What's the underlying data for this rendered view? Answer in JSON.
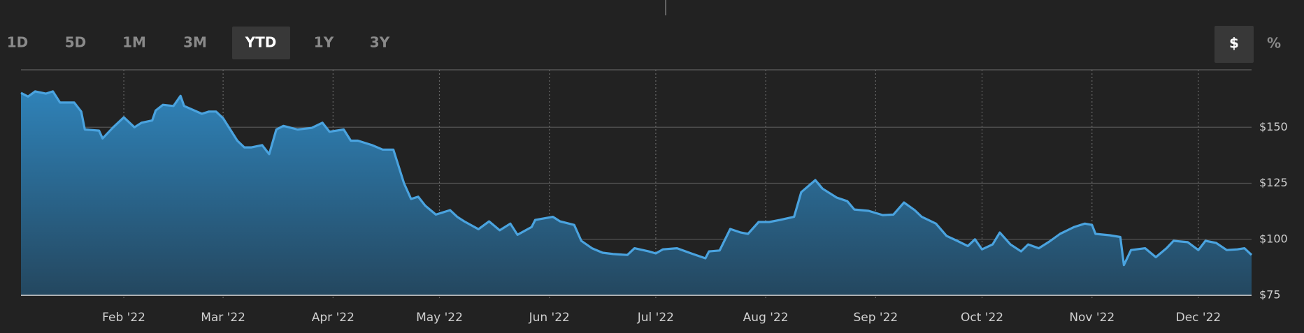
{
  "range_buttons": [
    "1D",
    "5D",
    "1M",
    "3M",
    "YTD",
    "1Y",
    "3Y"
  ],
  "selected_range": "YTD",
  "unit_buttons": [
    "$",
    "%"
  ],
  "selected_unit": "$",
  "chart_data": {
    "type": "area",
    "color": "#4aa3df",
    "grid": true,
    "x": [
      3,
      5,
      7,
      10,
      12,
      14,
      18,
      20,
      21,
      25,
      26,
      29,
      32,
      35,
      37,
      40,
      41,
      43,
      46,
      48,
      49,
      54,
      56,
      58,
      60,
      64,
      66,
      68,
      71,
      73,
      75,
      77,
      81,
      85,
      88,
      90,
      94,
      96,
      98,
      102,
      105,
      108,
      111,
      113,
      115,
      117,
      120,
      124,
      126,
      128,
      132,
      135,
      138,
      141,
      143,
      147,
      148,
      153,
      155,
      159,
      161,
      164,
      167,
      170,
      174,
      176,
      180,
      182,
      184,
      188,
      192,
      196,
      197,
      200,
      203,
      206,
      208,
      211,
      214,
      217,
      221,
      223,
      227,
      229,
      233,
      236,
      238,
      242,
      246,
      249,
      252,
      255,
      257,
      261,
      264,
      267,
      270,
      272,
      274,
      277,
      279,
      282,
      285,
      287,
      290,
      293,
      296,
      300,
      303,
      305,
      306,
      310,
      313,
      314,
      316,
      320,
      323,
      326,
      328,
      332,
      335,
      337,
      340,
      343,
      346,
      348,
      350
    ],
    "values": [
      165.3,
      163.7,
      166,
      165,
      166,
      161,
      161,
      157,
      149,
      148.5,
      145,
      150,
      154.4,
      150,
      152,
      153,
      157.5,
      160,
      159.5,
      164,
      159.5,
      156,
      157,
      157,
      154,
      144,
      141,
      141,
      142,
      138,
      149,
      150.6,
      149,
      149.7,
      152,
      148,
      149,
      144,
      144,
      142,
      140,
      140,
      125,
      118,
      119,
      115,
      111,
      113,
      110,
      108,
      104.5,
      108,
      104,
      107,
      102,
      105.5,
      108.6,
      110,
      108,
      106.4,
      99.3,
      96,
      94,
      93.4,
      93,
      96,
      94.6,
      93.7,
      95.5,
      96,
      93.7,
      91.5,
      94.6,
      95,
      104.6,
      103,
      102.4,
      107.7,
      107.7,
      108.6,
      110,
      121,
      126.4,
      122.6,
      118.6,
      117,
      113.3,
      112.7,
      110.8,
      111,
      116.4,
      113,
      110,
      107,
      101.5,
      99.3,
      97,
      100,
      95.5,
      97.7,
      103,
      97.7,
      94.6,
      97.7,
      96,
      99,
      102.4,
      105.5,
      107,
      106.4,
      102.4,
      101.8,
      101,
      88.5,
      95.2,
      96,
      92,
      96,
      99.3,
      98.7,
      95.2,
      99.3,
      98.4,
      95.2,
      95.5,
      96,
      93
    ],
    "xlim": [
      3,
      350
    ],
    "xticks": [
      {
        "value": 32,
        "label": "Feb '22"
      },
      {
        "value": 60,
        "label": "Mar '22"
      },
      {
        "value": 91,
        "label": "Apr '22"
      },
      {
        "value": 121,
        "label": "May '22"
      },
      {
        "value": 152,
        "label": "Jun '22"
      },
      {
        "value": 182,
        "label": "Jul '22"
      },
      {
        "value": 213,
        "label": "Aug '22"
      },
      {
        "value": 244,
        "label": "Sep '22"
      },
      {
        "value": 274,
        "label": "Oct '22"
      },
      {
        "value": 305,
        "label": "Nov '22"
      },
      {
        "value": 335,
        "label": "Dec '22"
      }
    ],
    "ylim": [
      75,
      175
    ],
    "yticks": [
      {
        "value": 75,
        "label": "$75"
      },
      {
        "value": 100,
        "label": "$100"
      },
      {
        "value": 125,
        "label": "$125"
      },
      {
        "value": 150,
        "label": "$150"
      }
    ]
  }
}
